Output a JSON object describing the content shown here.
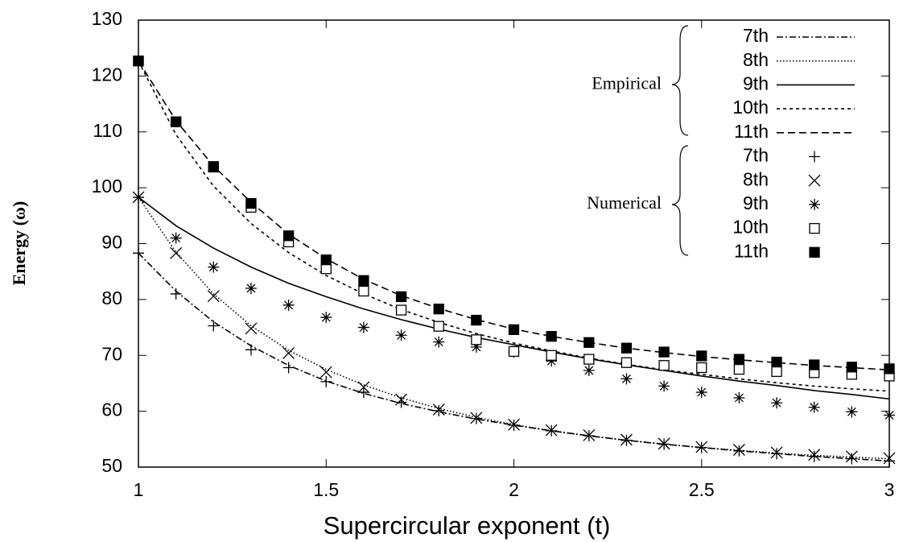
{
  "chart_data": {
    "type": "line",
    "xlabel": "Supercircular exponent (t)",
    "ylabel": "Energy (ω)",
    "x": [
      1,
      1.1,
      1.2,
      1.3,
      1.4,
      1.5,
      1.6,
      1.7,
      1.8,
      1.9,
      2,
      2.1,
      2.2,
      2.3,
      2.4,
      2.5,
      2.6,
      2.7,
      2.8,
      2.9,
      3
    ],
    "xlim": [
      1,
      3
    ],
    "xticks": [
      1,
      1.5,
      2,
      2.5,
      3
    ],
    "ylim": [
      50,
      130
    ],
    "yticks": [
      50,
      60,
      70,
      80,
      90,
      100,
      110,
      120,
      130
    ],
    "grid": false,
    "legend": "upper right",
    "series": [
      {
        "name": "7th",
        "group": "Empirical",
        "color": "#000000",
        "style": "dash-dot",
        "values": [
          88.3,
          81.5,
          76,
          71.7,
          68.2,
          65.4,
          63.2,
          61.4,
          59.9,
          58.6,
          57.5,
          56.5,
          55.6,
          54.8,
          54.1,
          53.5,
          52.9,
          52.4,
          51.9,
          51.5,
          51.1
        ]
      },
      {
        "name": "8th",
        "group": "Empirical",
        "color": "#000000",
        "style": "dotted",
        "values": [
          98.3,
          88.5,
          81,
          75.3,
          70.9,
          67.5,
          64.7,
          62.4,
          60.5,
          58.9,
          57.6,
          56.5,
          55.6,
          54.8,
          54.1,
          53.5,
          53,
          52.5,
          52.1,
          51.8,
          51.5
        ]
      },
      {
        "name": "9th",
        "group": "Empirical",
        "color": "#000000",
        "style": "solid",
        "values": [
          98.3,
          93.2,
          89.2,
          85.8,
          82.9,
          80.5,
          78.3,
          76.4,
          74.7,
          73.2,
          71.9,
          70.6,
          69.4,
          68.3,
          67.3,
          66.3,
          65.4,
          64.6,
          63.7,
          63,
          62.2
        ]
      },
      {
        "name": "10th",
        "group": "Empirical",
        "color": "#000000",
        "style": "short-dash",
        "values": [
          122.7,
          109.5,
          100.3,
          93.6,
          88.4,
          84.3,
          81,
          78.2,
          75.9,
          73.9,
          72.2,
          70.8,
          69.5,
          68.4,
          67.4,
          66.6,
          65.8,
          65.1,
          64.5,
          64,
          63.6
        ]
      },
      {
        "name": "11th",
        "group": "Empirical",
        "color": "#000000",
        "style": "dashed",
        "values": [
          122.7,
          112,
          103.9,
          97.4,
          91.7,
          87.3,
          83.6,
          80.7,
          78.4,
          76.4,
          74.7,
          73.4,
          72.3,
          71.3,
          70.5,
          69.8,
          69.2,
          68.7,
          68.2,
          67.8,
          67.4
        ]
      },
      {
        "name": "7th",
        "group": "Numerical",
        "color": "#000000",
        "style": "plus",
        "values": [
          88.3,
          81,
          75.3,
          71,
          67.8,
          65.3,
          63.4,
          61.6,
          60.1,
          58.7,
          57.5,
          56.5,
          55.6,
          54.8,
          54.1,
          53.5,
          52.9,
          52.4,
          51.9,
          51.5,
          51.1
        ]
      },
      {
        "name": "8th",
        "group": "Numerical",
        "color": "#000000",
        "style": "cross",
        "values": [
          98.3,
          88.3,
          80.6,
          74.8,
          70.4,
          67,
          64.3,
          62.1,
          60.3,
          58.8,
          57.6,
          56.6,
          55.7,
          54.9,
          54.2,
          53.6,
          53.1,
          52.6,
          52.2,
          51.9,
          51.6
        ]
      },
      {
        "name": "9th",
        "group": "Numerical",
        "color": "#000000",
        "style": "star",
        "values": [
          98.3,
          91,
          85.8,
          82,
          79,
          76.8,
          75,
          73.6,
          72.4,
          71.5,
          70.6,
          69,
          67.3,
          65.8,
          64.5,
          63.4,
          62.4,
          61.5,
          60.7,
          59.9,
          59.3
        ]
      },
      {
        "name": "10th",
        "group": "Numerical",
        "color": "#000000",
        "style": "square-open",
        "values": [
          122.7,
          111.8,
          103.7,
          96.5,
          90.3,
          85.5,
          81.5,
          78.1,
          75.2,
          72.8,
          70.7,
          70,
          69.3,
          68.7,
          68.2,
          67.8,
          67.5,
          67.1,
          66.9,
          66.6,
          66.3
        ]
      },
      {
        "name": "11th",
        "group": "Numerical",
        "color": "#000000",
        "style": "square-filled",
        "values": [
          122.7,
          111.8,
          103.8,
          97.2,
          91.4,
          87.1,
          83.4,
          80.5,
          78.3,
          76.3,
          74.6,
          73.4,
          72.3,
          71.3,
          70.6,
          69.9,
          69.3,
          68.8,
          68.3,
          67.9,
          67.6
        ]
      }
    ]
  }
}
